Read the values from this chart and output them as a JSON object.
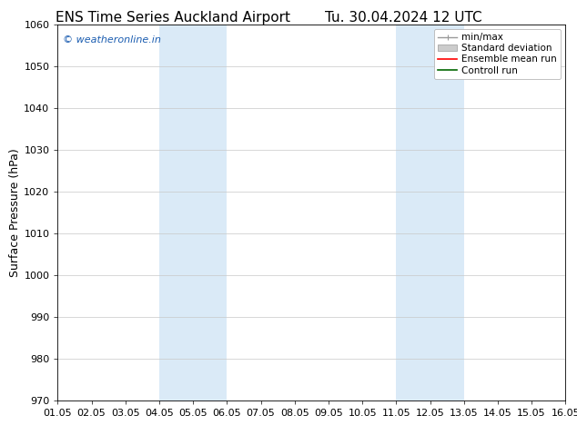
{
  "title_left": "ENS Time Series Auckland Airport",
  "title_right": "Tu. 30.04.2024 12 UTC",
  "ylabel": "Surface Pressure (hPa)",
  "background_color": "#ffffff",
  "plot_bg_color": "#ffffff",
  "ylim": [
    970,
    1060
  ],
  "yticks": [
    970,
    980,
    990,
    1000,
    1010,
    1020,
    1030,
    1040,
    1050,
    1060
  ],
  "xtick_labels": [
    "01.05",
    "02.05",
    "03.05",
    "04.05",
    "05.05",
    "06.05",
    "07.05",
    "08.05",
    "09.05",
    "10.05",
    "11.05",
    "12.05",
    "13.05",
    "14.05",
    "15.05",
    "16.05"
  ],
  "xtick_positions": [
    0,
    1,
    2,
    3,
    4,
    5,
    6,
    7,
    8,
    9,
    10,
    11,
    12,
    13,
    14,
    15
  ],
  "shaded_regions": [
    {
      "xmin": 3,
      "xmax": 5,
      "color": "#daeaf7"
    },
    {
      "xmin": 10,
      "xmax": 12,
      "color": "#daeaf7"
    }
  ],
  "watermark_text": "© weatheronline.in",
  "watermark_color": "#1a5cb0",
  "title_fontsize": 11,
  "tick_fontsize": 8,
  "axis_label_fontsize": 9,
  "legend_fontsize": 7.5
}
